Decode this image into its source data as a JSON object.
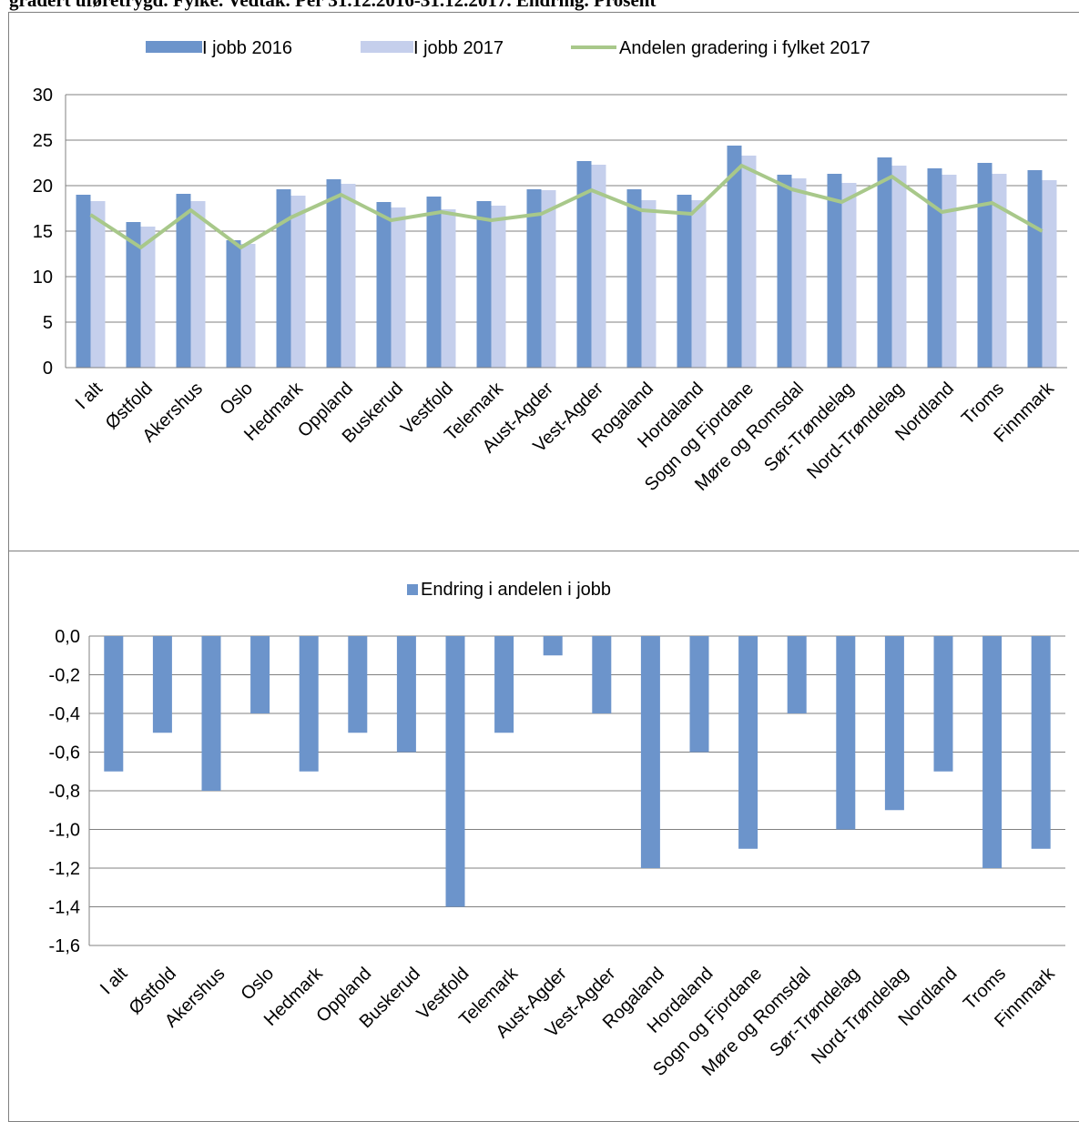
{
  "page_title": "gradert uføretrygd. Fylke. Vedtak. Per 31.12.2016-31.12.2017. Endring. Prosent",
  "colors": {
    "bar_2016": "#6c94cb",
    "bar_2017": "#c5cfec",
    "line_gradering": "#a8c88a",
    "bar_change": "#6c94cb",
    "grid": "#808080"
  },
  "chart_data": [
    {
      "type": "bar",
      "categories": [
        "I alt",
        "Østfold",
        "Akershus",
        "Oslo",
        "Hedmark",
        "Oppland",
        "Buskerud",
        "Vestfold",
        "Telemark",
        "Aust-Agder",
        "Vest-Agder",
        "Rogaland",
        "Hordaland",
        "Sogn og Fjordane",
        "Møre og Romsdal",
        "Sør-Trøndelag",
        "Nord-Trøndelag",
        "Nordland",
        "Troms",
        "Finnmark"
      ],
      "series": [
        {
          "name": "I jobb 2016",
          "kind": "bar",
          "values": [
            19.0,
            16.0,
            19.1,
            14.0,
            19.6,
            20.7,
            18.2,
            18.8,
            18.3,
            19.6,
            22.7,
            19.6,
            19.0,
            24.4,
            21.2,
            21.3,
            23.1,
            21.9,
            22.5,
            21.7
          ]
        },
        {
          "name": "I jobb 2017",
          "kind": "bar",
          "values": [
            18.3,
            15.5,
            18.3,
            13.6,
            18.9,
            20.2,
            17.6,
            17.4,
            17.8,
            19.5,
            22.3,
            18.4,
            18.4,
            23.3,
            20.8,
            20.3,
            22.2,
            21.2,
            21.3,
            20.6
          ]
        },
        {
          "name": "Andelen gradering i fylket 2017",
          "kind": "line",
          "values": [
            16.8,
            13.2,
            17.3,
            13.2,
            16.5,
            19.0,
            16.2,
            17.1,
            16.2,
            16.9,
            19.5,
            17.3,
            16.9,
            22.2,
            19.6,
            18.2,
            21.0,
            17.1,
            18.1,
            15.0
          ]
        }
      ],
      "ylim": [
        0,
        30
      ],
      "yticks": [
        "0",
        "5",
        "10",
        "15",
        "20",
        "25",
        "30"
      ],
      "grid": true,
      "legend_position": "top"
    },
    {
      "type": "bar",
      "categories": [
        "I alt",
        "Østfold",
        "Akershus",
        "Oslo",
        "Hedmark",
        "Oppland",
        "Buskerud",
        "Vestfold",
        "Telemark",
        "Aust-Agder",
        "Vest-Agder",
        "Rogaland",
        "Hordaland",
        "Sogn og Fjordane",
        "Møre og Romsdal",
        "Sør-Trøndelag",
        "Nord-Trøndelag",
        "Nordland",
        "Troms",
        "Finnmark"
      ],
      "series": [
        {
          "name": "Endring i andelen i jobb",
          "kind": "bar",
          "values": [
            -0.7,
            -0.5,
            -0.8,
            -0.4,
            -0.7,
            -0.5,
            -0.6,
            -1.4,
            -0.5,
            -0.1,
            -0.4,
            -1.2,
            -0.6,
            -1.1,
            -0.4,
            -1.0,
            -0.9,
            -0.7,
            -1.2,
            -1.1
          ]
        }
      ],
      "ylim": [
        -1.6,
        0
      ],
      "yticks": [
        "0,0",
        "-0,2",
        "-0,4",
        "-0,6",
        "-0,8",
        "-1,0",
        "-1,2",
        "-1,4",
        "-1,6"
      ],
      "grid": true,
      "legend_position": "top"
    }
  ]
}
